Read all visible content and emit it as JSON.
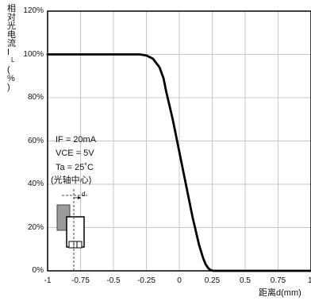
{
  "chart_data": {
    "type": "line",
    "ylabel_chars": [
      "相",
      "对",
      "光",
      "电",
      "流",
      "I",
      "L",
      "(",
      "%",
      ")"
    ],
    "ylabel": "相对光电流IL(%)",
    "xlabel": "距离d(mm)",
    "xlim": [
      -1,
      1
    ],
    "ylim": [
      0,
      120
    ],
    "x_ticks": [
      -1,
      -0.75,
      -0.5,
      -0.25,
      0,
      0.25,
      0.5,
      0.75,
      1
    ],
    "x_tick_labels": [
      "-1",
      "-0.75",
      "-0.5",
      "-0.25",
      "0",
      "0.25",
      "0.5",
      "0.75",
      "1"
    ],
    "y_ticks": [
      0,
      20,
      40,
      60,
      80,
      100,
      120
    ],
    "y_tick_labels": [
      "0%",
      "20%",
      "40%",
      "60%",
      "80%",
      "100%",
      "120%"
    ],
    "grid": true,
    "series": [
      {
        "x": [
          -1.0,
          -0.3,
          -0.25,
          -0.2,
          -0.15,
          -0.12,
          -0.1,
          -0.05,
          0.0,
          0.05,
          0.1,
          0.15,
          0.18,
          0.2,
          0.22,
          0.24,
          0.26,
          0.3,
          0.5,
          0.75,
          1.0
        ],
        "y": [
          100,
          100,
          99.5,
          98,
          94,
          89,
          83,
          70,
          55,
          40,
          25,
          12,
          6,
          3,
          1.2,
          0.3,
          0,
          0,
          0,
          0,
          0
        ]
      }
    ],
    "line_color": "#000000"
  },
  "annotation": {
    "lines": [
      "IF = 20mA",
      "VCE = 5V",
      "Ta = 25˚C",
      "(光轴中心)"
    ],
    "d_label": "d"
  }
}
